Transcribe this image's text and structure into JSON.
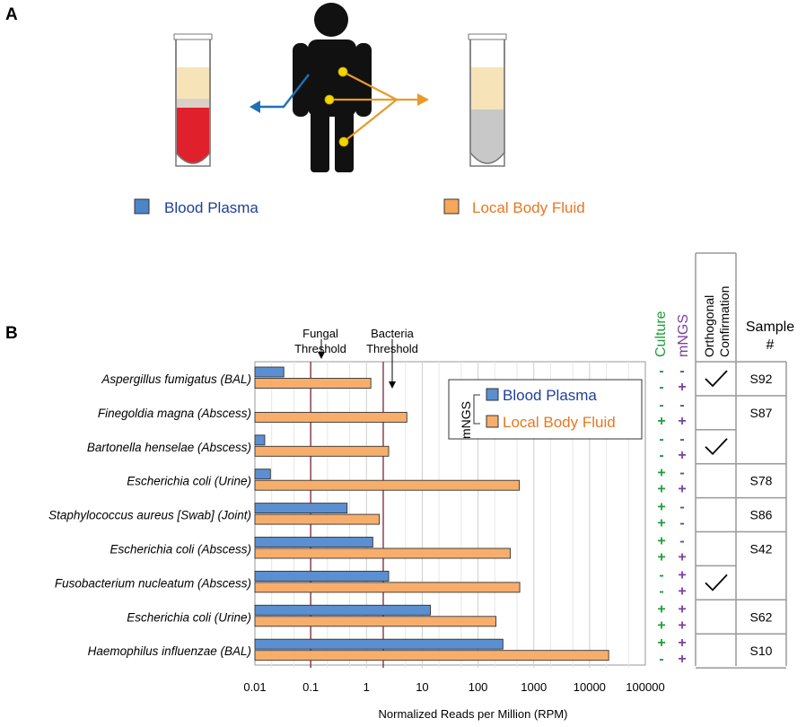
{
  "panel_a": {
    "label": "A",
    "legend": [
      {
        "label": "Blood Plasma",
        "color": "#4a86c8",
        "text_color": "#1f3f99"
      },
      {
        "label": "Local Body Fluid",
        "color": "#f5a85a",
        "text_color": "#e87722"
      }
    ],
    "colors": {
      "blood": "#e0202a",
      "plasma": "#f7e3b8",
      "fluid": "#c8c8c8",
      "arrow_blue": "#1f6fb5",
      "arrow_orange": "#e89a2a",
      "site_dot": "#f2d500"
    }
  },
  "panel_b": {
    "label": "B",
    "threshold_labels": {
      "fungal": "Fungal\nThreshold",
      "bacteria": "Bacteria\nThreshold"
    },
    "column_headers": {
      "culture": "Culture",
      "mngs": "mNGS",
      "orthogonal": "Orthogonal\nConfirmation",
      "sample": "Sample\n#"
    },
    "inset_legend": {
      "group": "mNGS",
      "items": [
        "Blood Plasma",
        "Local Body Fluid"
      ]
    },
    "colors": {
      "culture": "#1f9e3a",
      "mngs": "#7b3fa0",
      "threshold": "#7a2630",
      "blood_text": "#1f3f99",
      "fluid_text": "#e87722"
    },
    "rows": [
      {
        "culture": [
          "-",
          "-"
        ],
        "mngs": [
          "-",
          "+"
        ]
      },
      {
        "culture": [
          "-",
          "+"
        ],
        "mngs": [
          "-",
          "+"
        ]
      },
      {
        "culture": [
          "-",
          "-"
        ],
        "mngs": [
          "-",
          "+"
        ]
      },
      {
        "culture": [
          "+",
          "+"
        ],
        "mngs": [
          "-",
          "+"
        ]
      },
      {
        "culture": [
          "+",
          "+"
        ],
        "mngs": [
          "-",
          "-"
        ]
      },
      {
        "culture": [
          "+",
          "+"
        ],
        "mngs": [
          "-",
          "+"
        ]
      },
      {
        "culture": [
          "-",
          "-"
        ],
        "mngs": [
          "+",
          "+"
        ]
      },
      {
        "culture": [
          "+",
          "+"
        ],
        "mngs": [
          "+",
          "+"
        ]
      },
      {
        "culture": [
          "+",
          "-"
        ],
        "mngs": [
          "+",
          "+"
        ]
      }
    ],
    "sample_groups": [
      {
        "label": "S92",
        "rows": [
          0,
          0
        ],
        "confirmed": true
      },
      {
        "label": "S87",
        "rows": [
          1,
          2
        ],
        "confirmed": false,
        "check_rows": [
          2,
          2
        ]
      },
      {
        "label": "S78",
        "rows": [
          3,
          3
        ],
        "confirmed": false
      },
      {
        "label": "S86",
        "rows": [
          4,
          4
        ],
        "confirmed": false
      },
      {
        "label": "S42",
        "rows": [
          5,
          6
        ],
        "confirmed": false,
        "check_rows": [
          6,
          6
        ]
      },
      {
        "label": "S62",
        "rows": [
          7,
          7
        ],
        "confirmed": false
      },
      {
        "label": "S10",
        "rows": [
          8,
          8
        ],
        "confirmed": false
      }
    ],
    "ortho_cells": [
      {
        "rows": [
          0,
          0
        ],
        "check": true
      },
      {
        "rows": [
          1,
          1
        ],
        "check": false
      },
      {
        "rows": [
          2,
          2
        ],
        "check": true
      },
      {
        "rows": [
          3,
          3
        ],
        "check": false
      },
      {
        "rows": [
          4,
          4
        ],
        "check": false
      },
      {
        "rows": [
          5,
          5
        ],
        "check": false
      },
      {
        "rows": [
          6,
          6
        ],
        "check": true
      },
      {
        "rows": [
          7,
          7
        ],
        "check": false
      },
      {
        "rows": [
          8,
          8
        ],
        "check": false
      }
    ]
  },
  "chart_data": {
    "type": "bar",
    "orientation": "horizontal",
    "xscale": "log",
    "xlabel": "Normalized Reads per Million (RPM)",
    "xlim": [
      0.01,
      100000
    ],
    "xticks": [
      "0.01",
      "0.1",
      "1",
      "10",
      "100",
      "1000",
      "10000",
      "100000"
    ],
    "categories": [
      "Aspergillus fumigatus (BAL)",
      "Finegoldia magna (Abscess)",
      "Bartonella henselae (Abscess)",
      "Escherichia coli (Urine)",
      "Staphylococcus aureus [Swab] (Joint)",
      "Escherichia coli (Abscess)",
      "Fusobacterium nucleatum (Abscess)",
      "Escherichia coli (Urine)",
      "Haemophilus influenzae (BAL)"
    ],
    "series": [
      {
        "name": "Blood Plasma",
        "color": "#5b8fd1",
        "values": [
          0.033,
          0,
          0.015,
          0.019,
          0.45,
          1.3,
          2.5,
          14,
          280
        ]
      },
      {
        "name": "Local Body Fluid",
        "color": "#f7ae6b",
        "values": [
          1.2,
          5.3,
          2.5,
          550,
          1.7,
          380,
          560,
          210,
          22000
        ]
      }
    ],
    "thresholds": [
      {
        "name": "Fungal Threshold",
        "value": 0.1
      },
      {
        "name": "Bacteria Threshold",
        "value": 2
      }
    ]
  }
}
